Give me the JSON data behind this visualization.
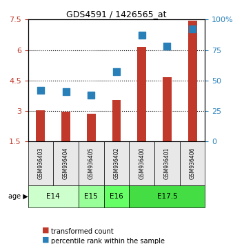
{
  "title": "GDS4591 / 1426565_at",
  "samples": [
    "GSM936403",
    "GSM936404",
    "GSM936405",
    "GSM936402",
    "GSM936400",
    "GSM936401",
    "GSM936406"
  ],
  "transformed_count": [
    3.05,
    2.97,
    2.85,
    3.55,
    6.15,
    4.65,
    7.45
  ],
  "percentile_rank": [
    42,
    41,
    38,
    57,
    87,
    78,
    92
  ],
  "ylim_left": [
    1.5,
    7.5
  ],
  "ylim_right": [
    0,
    100
  ],
  "yticks_left": [
    1.5,
    3.0,
    4.5,
    6.0,
    7.5
  ],
  "ytick_labels_left": [
    "1.5",
    "3",
    "4.5",
    "6",
    "7.5"
  ],
  "yticks_right": [
    0,
    25,
    50,
    75,
    100
  ],
  "ytick_labels_right": [
    "0",
    "25",
    "50",
    "75",
    "100%"
  ],
  "bar_color": "#c0392b",
  "dot_color": "#2980b9",
  "age_groups": [
    {
      "label": "E14",
      "start": 0,
      "end": 2,
      "color": "#ccffcc"
    },
    {
      "label": "E15",
      "start": 2,
      "end": 3,
      "color": "#99ff99"
    },
    {
      "label": "E16",
      "start": 3,
      "end": 4,
      "color": "#66ff66"
    },
    {
      "label": "E17.5",
      "start": 4,
      "end": 7,
      "color": "#44dd44"
    }
  ],
  "bar_width": 0.35,
  "dot_size": 60,
  "grid_color": "#000000",
  "grid_linestyle": "dotted",
  "bg_color": "#e8e8e8",
  "plot_bg": "#ffffff"
}
